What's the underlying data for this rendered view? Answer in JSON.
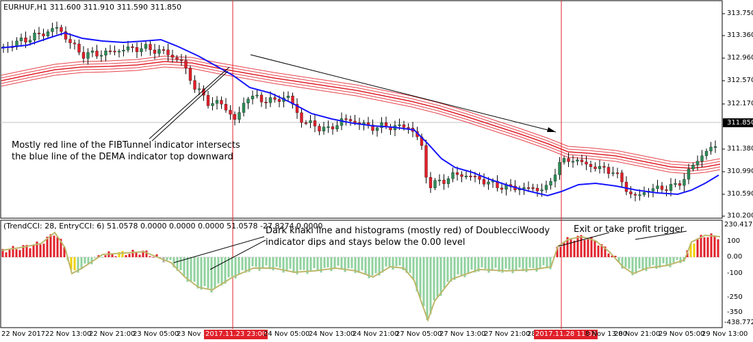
{
  "chart_header": {
    "symbol": "EURHUF,H1",
    "ohlc": "311.600 311.910 311.590 311.850"
  },
  "price_axis": {
    "labels": [
      "313.750",
      "313.360",
      "312.960",
      "312.570",
      "312.170",
      "311.380",
      "310.990",
      "310.590",
      "310.200"
    ],
    "current_price": "311.850"
  },
  "indicator_header": "(TrendCCI: 28, EntryCCI: 6)  51.0578 0.0000 0.0000 0.0000 51.0578 -27.8274 0.0000",
  "indicator_axis": {
    "labels": [
      "230.4178",
      "100",
      "0.00",
      "-100",
      "-250",
      "-350",
      "-438.7729"
    ]
  },
  "time_axis": {
    "labels": [
      "22 Nov 2017",
      "22 Nov 13:00",
      "22 Nov 21:00",
      "23 Nov 05:00",
      "23 Nov 1",
      "24 Nov 05:00",
      "24 Nov 13:00",
      "24 Nov 21:00",
      "27 Nov 05:00",
      "27 Nov 13:00",
      "27 Nov 21:00",
      "28",
      "8 Nov 13:00",
      "28 Nov 21:00",
      "29 Nov 05:00",
      "29 Nov 13:00"
    ],
    "highlight_1": "2017.11.23 23:00",
    "highlight_2": "2017.11.28 11:00"
  },
  "annotations": {
    "fib_line1": "Mostly red line of the FIBTunnel indicator intersects",
    "fib_line2": "the blue line of the DEMA indicator top downward",
    "woody_line1": "Dark khaki line and histograms (mostly red) of DoublecciWoody",
    "woody_line2": "indicator dips and stays below the 0.00 level",
    "exit": "Exit or take profit trigger"
  },
  "colors": {
    "bull": "#2e8b57",
    "bear": "#e0202a",
    "dema": "#1414ff",
    "fib": "#e0202a",
    "khaki": "#bdb76b",
    "hist_green": "#8fd19e",
    "hist_red": "#e0202a",
    "hist_yellow": "#f0d000",
    "hist_gray": "#a9a9a9"
  }
}
